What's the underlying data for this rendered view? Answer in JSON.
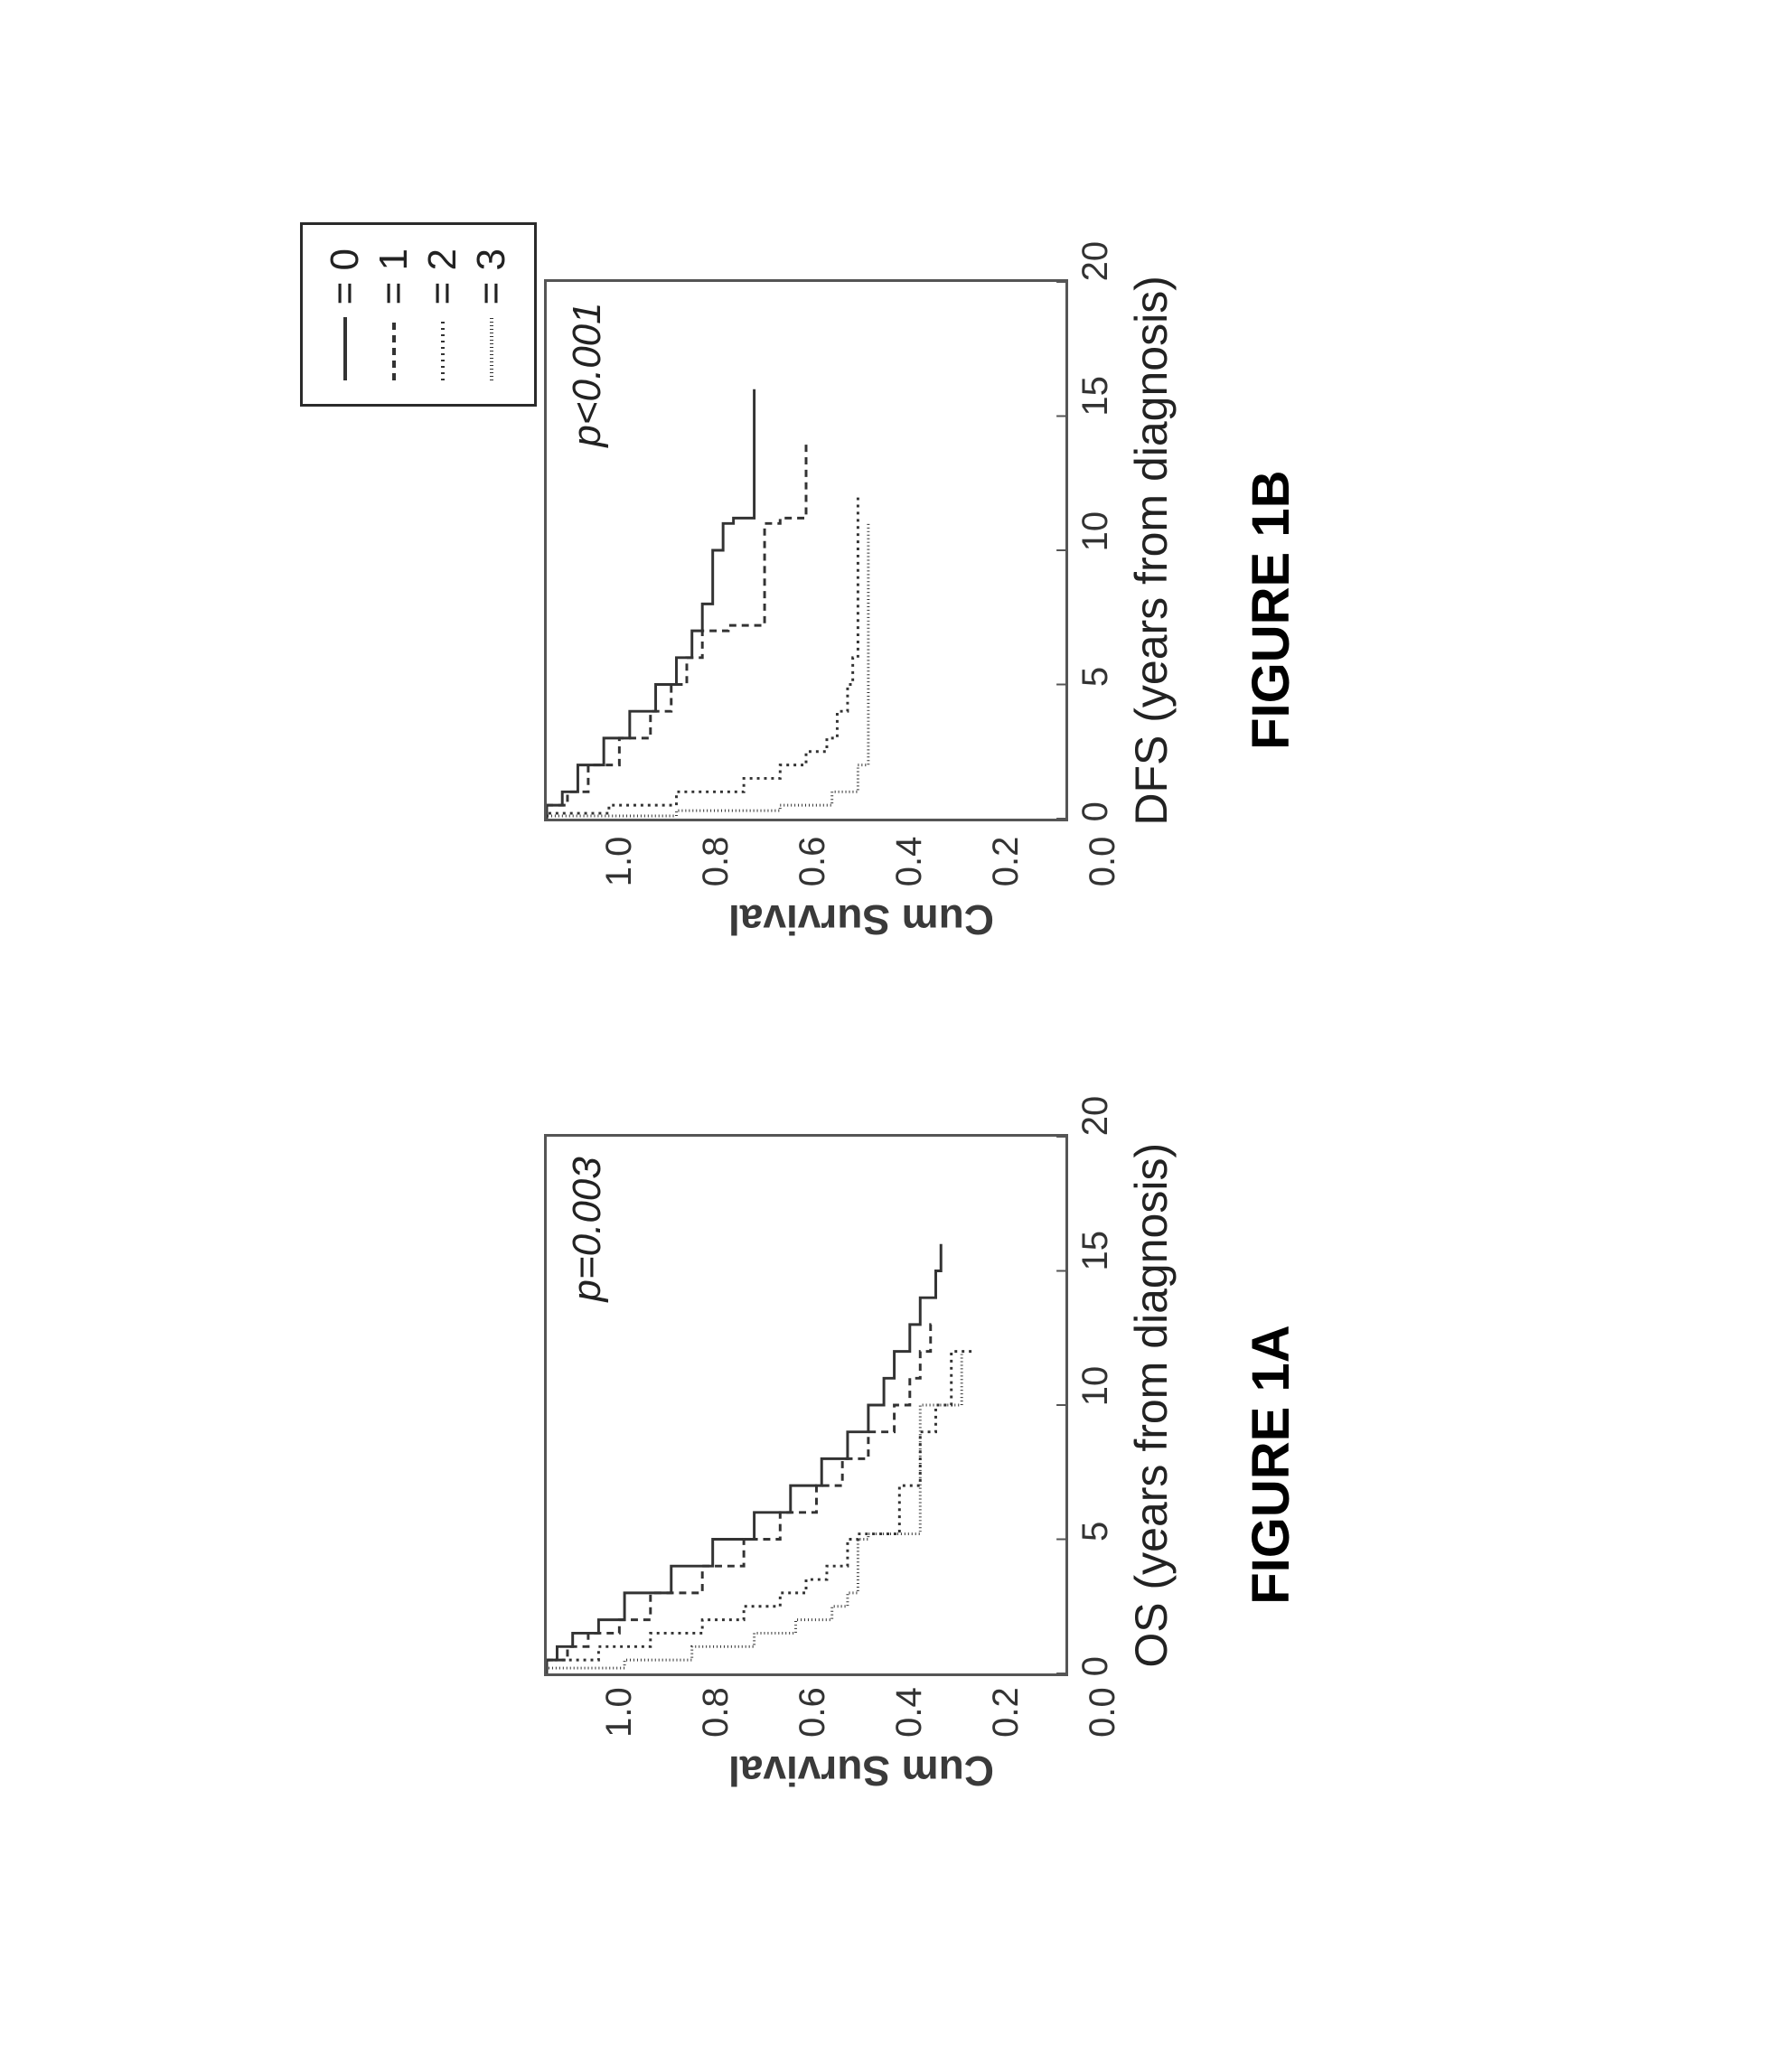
{
  "legend": {
    "items": [
      {
        "label": "= 0",
        "dash": "solid",
        "marker": "none",
        "color": "#333333"
      },
      {
        "label": "= 1",
        "dash": "8 6",
        "marker": "none",
        "color": "#333333"
      },
      {
        "label": "= 2",
        "dash": "2 5",
        "marker": "none",
        "color": "#333333"
      },
      {
        "label": "= 3",
        "dash": "1 3",
        "marker": "none",
        "color": "#333333"
      }
    ],
    "box_border_color": "#2a2a2a"
  },
  "chartA": {
    "type": "survival-step",
    "figure_title": "FIGURE 1A",
    "xlabel": "OS (years from diagnosis)",
    "ylabel": "Cum Survival",
    "pval": "p=0.003",
    "xlim": [
      0,
      20
    ],
    "ylim": [
      0,
      1.0
    ],
    "xticks": [
      0,
      5,
      10,
      15,
      20
    ],
    "yticks": [
      "1.0",
      "0.8",
      "0.6",
      "0.4",
      "0.2",
      "0.0"
    ],
    "tick_fontsize": 40,
    "label_fontsize": 50,
    "pval_fontsize": 44,
    "line_width": 3,
    "background_color": "#ffffff",
    "border_color": "#555555",
    "series": [
      {
        "name": "n0",
        "dash": "",
        "color": "#333333",
        "pts": [
          [
            0,
            1.0
          ],
          [
            0.5,
            0.98
          ],
          [
            1,
            0.95
          ],
          [
            1.5,
            0.9
          ],
          [
            2,
            0.85
          ],
          [
            3,
            0.76
          ],
          [
            4,
            0.68
          ],
          [
            5,
            0.6
          ],
          [
            6,
            0.53
          ],
          [
            7,
            0.47
          ],
          [
            8,
            0.42
          ],
          [
            9,
            0.38
          ],
          [
            10,
            0.35
          ],
          [
            11,
            0.33
          ],
          [
            12,
            0.3
          ],
          [
            13,
            0.28
          ],
          [
            14,
            0.25
          ],
          [
            15,
            0.24
          ],
          [
            16,
            0.24
          ]
        ]
      },
      {
        "name": "n1",
        "dash": "8 6",
        "color": "#333333",
        "pts": [
          [
            0,
            1.0
          ],
          [
            0.5,
            0.96
          ],
          [
            1,
            0.92
          ],
          [
            1.5,
            0.86
          ],
          [
            2,
            0.8
          ],
          [
            3,
            0.7
          ],
          [
            4,
            0.62
          ],
          [
            5,
            0.55
          ],
          [
            6,
            0.48
          ],
          [
            7,
            0.43
          ],
          [
            8,
            0.38
          ],
          [
            9,
            0.33
          ],
          [
            10,
            0.3
          ],
          [
            11,
            0.28
          ],
          [
            12,
            0.26
          ],
          [
            13,
            0.25
          ]
        ]
      },
      {
        "name": "n2",
        "dash": "3 5",
        "color": "#333333",
        "pts": [
          [
            0,
            1.0
          ],
          [
            0.5,
            0.9
          ],
          [
            1,
            0.8
          ],
          [
            1.5,
            0.7
          ],
          [
            2,
            0.62
          ],
          [
            2.5,
            0.55
          ],
          [
            3,
            0.5
          ],
          [
            3.5,
            0.46
          ],
          [
            4,
            0.42
          ],
          [
            5,
            0.4
          ],
          [
            5.2,
            0.32
          ],
          [
            6,
            0.32
          ],
          [
            7,
            0.28
          ],
          [
            8,
            0.28
          ],
          [
            9,
            0.25
          ],
          [
            10,
            0.22
          ],
          [
            11,
            0.22
          ],
          [
            12,
            0.18
          ]
        ]
      },
      {
        "name": "n3",
        "dash": "1 3",
        "color": "#333333",
        "pts": [
          [
            0,
            1.0
          ],
          [
            0.2,
            0.85
          ],
          [
            0.5,
            0.72
          ],
          [
            1,
            0.6
          ],
          [
            1.5,
            0.52
          ],
          [
            2,
            0.45
          ],
          [
            2.5,
            0.42
          ],
          [
            3,
            0.4
          ],
          [
            3.5,
            0.4
          ],
          [
            4,
            0.4
          ],
          [
            5,
            0.38
          ],
          [
            5.2,
            0.28
          ],
          [
            7,
            0.28
          ],
          [
            9,
            0.28
          ],
          [
            10,
            0.2
          ],
          [
            12,
            0.2
          ]
        ]
      }
    ]
  },
  "chartB": {
    "type": "survival-step",
    "figure_title": "FIGURE 1B",
    "xlabel": "DFS (years from diagnosis)",
    "ylabel": "Cum Survival",
    "pval": "p<0.001",
    "xlim": [
      0,
      20
    ],
    "ylim": [
      0,
      1.0
    ],
    "xticks": [
      0,
      5,
      10,
      15,
      20
    ],
    "yticks": [
      "1.0",
      "0.8",
      "0.6",
      "0.4",
      "0.2",
      "0.0"
    ],
    "tick_fontsize": 40,
    "label_fontsize": 50,
    "pval_fontsize": 44,
    "line_width": 3,
    "background_color": "#ffffff",
    "border_color": "#555555",
    "series": [
      {
        "name": "n0",
        "dash": "",
        "color": "#333333",
        "pts": [
          [
            0,
            1.0
          ],
          [
            0.5,
            0.97
          ],
          [
            1,
            0.94
          ],
          [
            2,
            0.89
          ],
          [
            3,
            0.84
          ],
          [
            4,
            0.79
          ],
          [
            5,
            0.75
          ],
          [
            6,
            0.72
          ],
          [
            7,
            0.7
          ],
          [
            8,
            0.68
          ],
          [
            10,
            0.66
          ],
          [
            11,
            0.64
          ],
          [
            11.2,
            0.6
          ],
          [
            13,
            0.6
          ],
          [
            14,
            0.6
          ],
          [
            16,
            0.6
          ]
        ]
      },
      {
        "name": "n1",
        "dash": "8 6",
        "color": "#333333",
        "pts": [
          [
            0,
            1.0
          ],
          [
            0.5,
            0.96
          ],
          [
            1,
            0.92
          ],
          [
            2,
            0.86
          ],
          [
            3,
            0.8
          ],
          [
            4,
            0.76
          ],
          [
            5,
            0.73
          ],
          [
            6,
            0.7
          ],
          [
            7,
            0.65
          ],
          [
            7.2,
            0.58
          ],
          [
            9,
            0.58
          ],
          [
            11,
            0.55
          ],
          [
            11.2,
            0.5
          ],
          [
            14,
            0.5
          ]
        ]
      },
      {
        "name": "n2",
        "dash": "3 5",
        "color": "#333333",
        "pts": [
          [
            0,
            1.0
          ],
          [
            0.2,
            0.88
          ],
          [
            0.5,
            0.75
          ],
          [
            1,
            0.62
          ],
          [
            1.5,
            0.55
          ],
          [
            2,
            0.5
          ],
          [
            2.5,
            0.46
          ],
          [
            3,
            0.44
          ],
          [
            4,
            0.42
          ],
          [
            5,
            0.41
          ],
          [
            6,
            0.4
          ],
          [
            8,
            0.4
          ],
          [
            10,
            0.4
          ],
          [
            12,
            0.4
          ]
        ]
      },
      {
        "name": "n3",
        "dash": "1 3",
        "color": "#333333",
        "pts": [
          [
            0,
            1.0
          ],
          [
            0.1,
            0.75
          ],
          [
            0.3,
            0.55
          ],
          [
            0.5,
            0.45
          ],
          [
            1,
            0.4
          ],
          [
            2,
            0.38
          ],
          [
            3,
            0.38
          ],
          [
            4,
            0.38
          ],
          [
            5,
            0.38
          ],
          [
            8,
            0.38
          ],
          [
            11,
            0.38
          ]
        ]
      }
    ]
  }
}
